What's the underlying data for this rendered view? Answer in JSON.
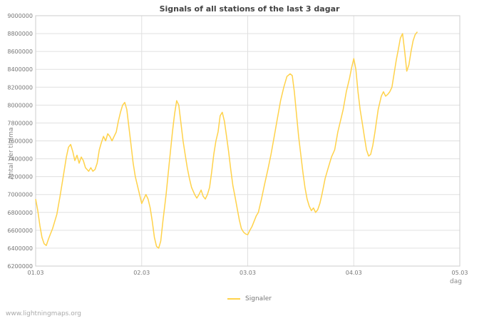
{
  "footer": {
    "watermark": "www.lightningmaps.org"
  },
  "chart_data": {
    "type": "line",
    "title": "Signals of all stations of the last 3 dagar",
    "xlabel": "dag",
    "ylabel": "Antal per timma",
    "series_name": "Signaler",
    "line_color": "#FFD24A",
    "grid": true,
    "legend_position": "bottom",
    "xlim": [
      1,
      5
    ],
    "ylim": [
      6200000,
      9000000
    ],
    "xticks": [
      1,
      2,
      3,
      4,
      5
    ],
    "xtick_labels": [
      "01.03",
      "02.03",
      "03.03",
      "04.03",
      "05.03"
    ],
    "yticks": [
      6200000,
      6400000,
      6600000,
      6800000,
      7000000,
      7200000,
      7400000,
      7600000,
      7800000,
      8000000,
      8200000,
      8400000,
      8600000,
      8800000,
      9000000
    ],
    "points": [
      [
        1.0,
        6950000
      ],
      [
        1.02,
        6820000
      ],
      [
        1.04,
        6650000
      ],
      [
        1.06,
        6520000
      ],
      [
        1.08,
        6450000
      ],
      [
        1.1,
        6430000
      ],
      [
        1.12,
        6500000
      ],
      [
        1.14,
        6560000
      ],
      [
        1.16,
        6620000
      ],
      [
        1.18,
        6700000
      ],
      [
        1.2,
        6780000
      ],
      [
        1.23,
        6980000
      ],
      [
        1.26,
        7200000
      ],
      [
        1.29,
        7420000
      ],
      [
        1.31,
        7530000
      ],
      [
        1.33,
        7560000
      ],
      [
        1.35,
        7480000
      ],
      [
        1.37,
        7380000
      ],
      [
        1.39,
        7440000
      ],
      [
        1.41,
        7350000
      ],
      [
        1.43,
        7420000
      ],
      [
        1.45,
        7380000
      ],
      [
        1.47,
        7300000
      ],
      [
        1.5,
        7260000
      ],
      [
        1.52,
        7300000
      ],
      [
        1.54,
        7260000
      ],
      [
        1.56,
        7280000
      ],
      [
        1.58,
        7350000
      ],
      [
        1.6,
        7500000
      ],
      [
        1.62,
        7580000
      ],
      [
        1.64,
        7650000
      ],
      [
        1.66,
        7600000
      ],
      [
        1.68,
        7680000
      ],
      [
        1.7,
        7650000
      ],
      [
        1.72,
        7600000
      ],
      [
        1.74,
        7650000
      ],
      [
        1.76,
        7700000
      ],
      [
        1.78,
        7820000
      ],
      [
        1.8,
        7920000
      ],
      [
        1.82,
        8000000
      ],
      [
        1.84,
        8030000
      ],
      [
        1.86,
        7950000
      ],
      [
        1.88,
        7750000
      ],
      [
        1.9,
        7550000
      ],
      [
        1.92,
        7350000
      ],
      [
        1.94,
        7200000
      ],
      [
        1.96,
        7100000
      ],
      [
        1.98,
        7000000
      ],
      [
        2.0,
        6900000
      ],
      [
        2.02,
        6950000
      ],
      [
        2.04,
        7000000
      ],
      [
        2.06,
        6950000
      ],
      [
        2.08,
        6850000
      ],
      [
        2.1,
        6700000
      ],
      [
        2.12,
        6520000
      ],
      [
        2.14,
        6420000
      ],
      [
        2.16,
        6400000
      ],
      [
        2.18,
        6480000
      ],
      [
        2.2,
        6700000
      ],
      [
        2.23,
        7000000
      ],
      [
        2.26,
        7350000
      ],
      [
        2.29,
        7700000
      ],
      [
        2.31,
        7900000
      ],
      [
        2.33,
        8050000
      ],
      [
        2.35,
        8000000
      ],
      [
        2.37,
        7800000
      ],
      [
        2.39,
        7600000
      ],
      [
        2.41,
        7450000
      ],
      [
        2.43,
        7300000
      ],
      [
        2.45,
        7180000
      ],
      [
        2.47,
        7080000
      ],
      [
        2.5,
        7000000
      ],
      [
        2.52,
        6960000
      ],
      [
        2.54,
        7000000
      ],
      [
        2.56,
        7050000
      ],
      [
        2.58,
        6980000
      ],
      [
        2.6,
        6950000
      ],
      [
        2.62,
        7000000
      ],
      [
        2.64,
        7080000
      ],
      [
        2.66,
        7250000
      ],
      [
        2.68,
        7450000
      ],
      [
        2.7,
        7600000
      ],
      [
        2.72,
        7700000
      ],
      [
        2.74,
        7880000
      ],
      [
        2.76,
        7920000
      ],
      [
        2.78,
        7820000
      ],
      [
        2.8,
        7650000
      ],
      [
        2.82,
        7480000
      ],
      [
        2.84,
        7280000
      ],
      [
        2.86,
        7100000
      ],
      [
        2.88,
        6980000
      ],
      [
        2.9,
        6850000
      ],
      [
        2.92,
        6720000
      ],
      [
        2.94,
        6620000
      ],
      [
        2.96,
        6580000
      ],
      [
        2.98,
        6560000
      ],
      [
        3.0,
        6550000
      ],
      [
        3.02,
        6600000
      ],
      [
        3.04,
        6640000
      ],
      [
        3.06,
        6700000
      ],
      [
        3.08,
        6760000
      ],
      [
        3.1,
        6800000
      ],
      [
        3.13,
        6950000
      ],
      [
        3.16,
        7120000
      ],
      [
        3.19,
        7280000
      ],
      [
        3.22,
        7450000
      ],
      [
        3.25,
        7650000
      ],
      [
        3.28,
        7850000
      ],
      [
        3.31,
        8050000
      ],
      [
        3.34,
        8200000
      ],
      [
        3.37,
        8320000
      ],
      [
        3.4,
        8350000
      ],
      [
        3.42,
        8330000
      ],
      [
        3.44,
        8150000
      ],
      [
        3.46,
        7900000
      ],
      [
        3.48,
        7650000
      ],
      [
        3.5,
        7450000
      ],
      [
        3.52,
        7250000
      ],
      [
        3.54,
        7080000
      ],
      [
        3.56,
        6950000
      ],
      [
        3.58,
        6870000
      ],
      [
        3.6,
        6820000
      ],
      [
        3.62,
        6850000
      ],
      [
        3.64,
        6800000
      ],
      [
        3.66,
        6830000
      ],
      [
        3.68,
        6900000
      ],
      [
        3.7,
        7000000
      ],
      [
        3.73,
        7180000
      ],
      [
        3.76,
        7300000
      ],
      [
        3.79,
        7420000
      ],
      [
        3.82,
        7500000
      ],
      [
        3.85,
        7700000
      ],
      [
        3.88,
        7850000
      ],
      [
        3.9,
        7950000
      ],
      [
        3.93,
        8150000
      ],
      [
        3.96,
        8300000
      ],
      [
        3.98,
        8420000
      ],
      [
        4.0,
        8520000
      ],
      [
        4.02,
        8400000
      ],
      [
        4.04,
        8150000
      ],
      [
        4.06,
        7950000
      ],
      [
        4.08,
        7800000
      ],
      [
        4.1,
        7650000
      ],
      [
        4.12,
        7500000
      ],
      [
        4.14,
        7430000
      ],
      [
        4.16,
        7450000
      ],
      [
        4.18,
        7550000
      ],
      [
        4.2,
        7700000
      ],
      [
        4.23,
        7950000
      ],
      [
        4.26,
        8100000
      ],
      [
        4.28,
        8150000
      ],
      [
        4.3,
        8100000
      ],
      [
        4.32,
        8120000
      ],
      [
        4.34,
        8150000
      ],
      [
        4.36,
        8200000
      ],
      [
        4.38,
        8350000
      ],
      [
        4.4,
        8500000
      ],
      [
        4.42,
        8620000
      ],
      [
        4.44,
        8750000
      ],
      [
        4.46,
        8800000
      ],
      [
        4.48,
        8600000
      ],
      [
        4.5,
        8380000
      ],
      [
        4.52,
        8450000
      ],
      [
        4.54,
        8600000
      ],
      [
        4.56,
        8720000
      ],
      [
        4.58,
        8790000
      ],
      [
        4.6,
        8820000
      ]
    ]
  }
}
